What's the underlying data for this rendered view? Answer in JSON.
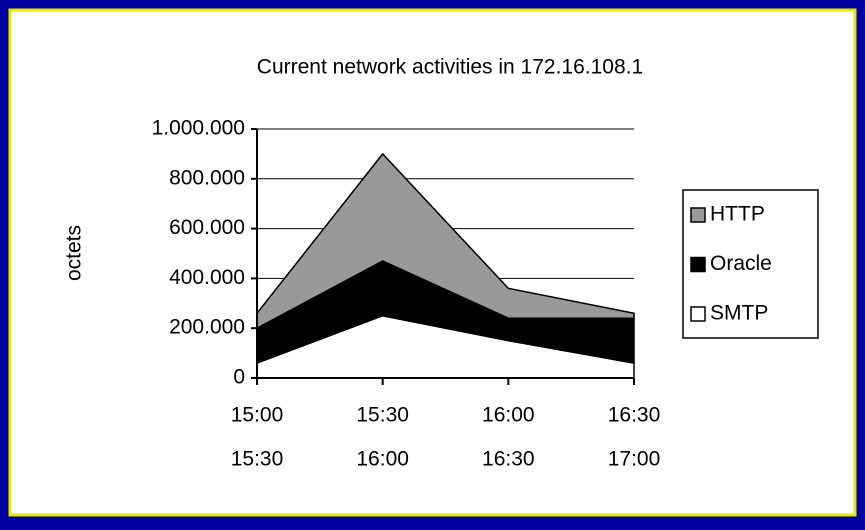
{
  "chart_data": {
    "type": "stacked-area",
    "title": "Current network activities in 172.16.108.1",
    "y_label": "octets",
    "categories": [
      [
        "15:00",
        "15:30"
      ],
      [
        "15:30",
        "16:00"
      ],
      [
        "16:00",
        "16:30"
      ],
      [
        "16:30",
        "17:00"
      ]
    ],
    "series": [
      {
        "name": "SMTP",
        "color": "#ffffff",
        "values": [
          60000,
          250000,
          150000,
          60000
        ]
      },
      {
        "name": "Oracle",
        "color": "#000000",
        "values": [
          140000,
          220000,
          90000,
          180000
        ]
      },
      {
        "name": "HTTP",
        "color": "#999999",
        "values": [
          60000,
          430000,
          120000,
          20000
        ]
      }
    ],
    "ylim": [
      0,
      1000000
    ],
    "yticks": [
      0,
      {
        "value": 200000,
        "label": "200.000"
      },
      {
        "value": 400000,
        "label": "400.000"
      },
      {
        "value": 600000,
        "label": "600.000"
      },
      {
        "value": 800000,
        "label": "800.000"
      },
      {
        "value": 1000000,
        "label": "1.000.000"
      }
    ],
    "grid": true,
    "legend": "right"
  }
}
